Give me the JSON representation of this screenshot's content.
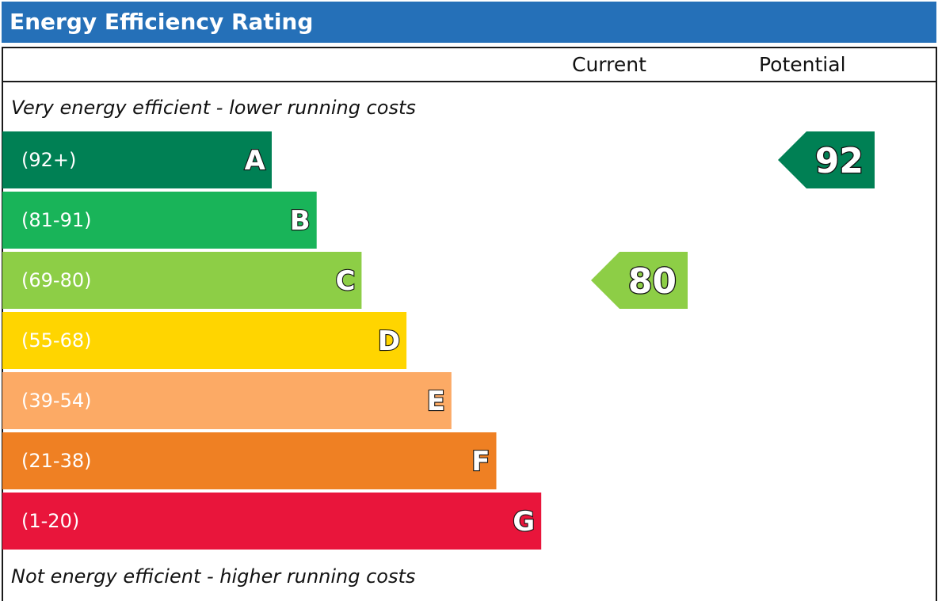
{
  "header": {
    "title": "Energy Efficiency Rating"
  },
  "columns": {
    "current": "Current",
    "potential": "Potential"
  },
  "notes": {
    "top": "Very energy efficient - lower running costs",
    "bottom": "Not energy efficient - higher running costs"
  },
  "chart_data": {
    "type": "bar",
    "title": "Energy Efficiency Rating",
    "categories": [
      "A",
      "B",
      "C",
      "D",
      "E",
      "F",
      "G"
    ],
    "bands": [
      {
        "letter": "A",
        "range": "(92+)",
        "color": "#008054"
      },
      {
        "letter": "B",
        "range": "(81-91)",
        "color": "#19b459"
      },
      {
        "letter": "C",
        "range": "(69-80)",
        "color": "#8dce46"
      },
      {
        "letter": "D",
        "range": "(55-68)",
        "color": "#ffd500"
      },
      {
        "letter": "E",
        "range": "(39-54)",
        "color": "#fcaa65"
      },
      {
        "letter": "F",
        "range": "(21-38)",
        "color": "#ef8023"
      },
      {
        "letter": "G",
        "range": "(1-20)",
        "color": "#e9153b"
      }
    ],
    "current": {
      "label": "Current",
      "value": 80,
      "band": "C",
      "color": "#8dce46"
    },
    "potential": {
      "label": "Potential",
      "value": 92,
      "band": "A",
      "color": "#008054"
    }
  }
}
